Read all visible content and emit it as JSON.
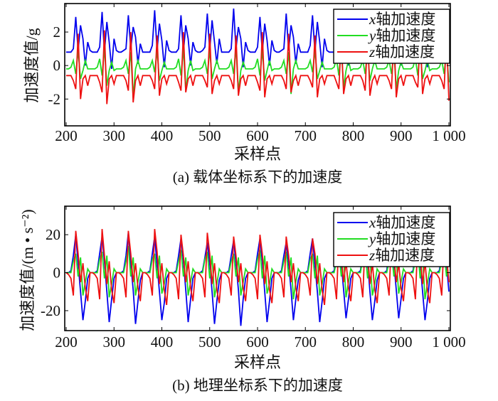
{
  "chart_data": [
    {
      "type": "line",
      "title": "",
      "caption": "(a) 载体坐标系下的加速度",
      "xlabel": "采样点",
      "ylabel": "加速度值/g",
      "xlim": [
        197,
        1003
      ],
      "ylim": [
        -3.6,
        3.7
      ],
      "xticks": [
        200,
        300,
        400,
        500,
        600,
        700,
        800,
        900,
        1000
      ],
      "xtick_labels": [
        "200",
        "300",
        "400",
        "500",
        "600",
        "700",
        "800",
        "900",
        "1 000"
      ],
      "yticks": [
        -2,
        0,
        2
      ],
      "ytick_labels": [
        "-2",
        "0",
        "2"
      ],
      "grid": false,
      "legend_position": "top-right",
      "x_start": 200,
      "x_step": 5,
      "series": [
        {
          "name": "x轴加速度",
          "var": "x",
          "color": "#0000ee",
          "values": [
            0.8,
            0.8,
            0.8,
            1.0,
            2.9,
            0.9,
            2.4,
            1.6,
            0.0,
            1.4,
            0.9,
            0.8,
            0.8,
            0.8,
            1.1,
            3.2,
            0.8,
            2.6,
            1.4,
            -0.2,
            1.6,
            0.9,
            0.8,
            0.8,
            0.9,
            1.0,
            3.0,
            1.0,
            2.3,
            1.7,
            0.1,
            1.3,
            0.8,
            0.8,
            0.8,
            0.8,
            1.2,
            3.3,
            0.9,
            2.5,
            1.5,
            -0.1,
            1.5,
            0.9,
            0.8,
            0.8,
            0.8,
            1.0,
            3.0,
            0.8,
            2.4,
            1.6,
            0.0,
            1.4,
            0.9,
            0.8,
            0.8,
            0.9,
            1.1,
            3.1,
            0.9,
            2.7,
            1.4,
            0.1,
            1.6,
            0.8,
            0.8,
            0.8,
            0.8,
            1.0,
            3.4,
            1.0,
            2.3,
            1.6,
            -0.1,
            1.4,
            0.9,
            0.8,
            0.8,
            0.8,
            1.1,
            2.9,
            0.8,
            2.5,
            1.5,
            0.0,
            1.5,
            0.9,
            0.8,
            0.8,
            0.9,
            1.0,
            3.1,
            0.9,
            2.4,
            1.7,
            0.1,
            1.3,
            0.8,
            0.8,
            0.8,
            0.8,
            1.2,
            3.0,
            0.8,
            2.6,
            1.4,
            -0.1,
            1.6,
            0.9,
            0.8,
            0.8,
            0.8,
            1.0,
            2.8,
            1.0,
            2.4,
            1.6,
            0.0,
            1.4,
            0.9,
            0.8,
            0.8,
            0.9,
            1.1,
            3.0,
            0.9,
            2.5,
            1.5,
            0.1,
            1.5,
            0.8,
            0.8,
            0.8,
            0.8,
            1.0,
            2.9,
            0.8,
            2.3,
            1.6,
            0.0,
            1.4,
            0.9,
            0.8,
            0.8,
            0.8,
            1.1,
            3.1,
            0.9,
            2.6,
            1.5,
            -0.1,
            1.5,
            0.9,
            0.8,
            0.8,
            0.8,
            1.0,
            2.8,
            0.9,
            2.2
          ]
        },
        {
          "name": "y轴加速度",
          "var": "y",
          "color": "#22dd22",
          "values": [
            -0.2,
            -0.2,
            -0.1,
            0.3,
            -0.5,
            0.9,
            -0.8,
            -0.3,
            0.3,
            -0.2,
            -0.2,
            -0.2,
            -0.2,
            -0.1,
            0.4,
            -0.6,
            1.0,
            -1.2,
            -0.3,
            0.2,
            -0.3,
            -0.2,
            -0.2,
            -0.2,
            -0.1,
            0.3,
            -0.5,
            0.8,
            -1.9,
            -0.2,
            0.3,
            -0.2,
            -0.2,
            -0.2,
            -0.2,
            -0.1,
            0.3,
            -0.4,
            0.9,
            -0.9,
            -0.3,
            0.2,
            -0.2,
            -0.2,
            -0.2,
            -0.2,
            -0.1,
            0.4,
            -0.6,
            1.0,
            -1.5,
            -0.3,
            0.3,
            -0.3,
            -0.2,
            -0.2,
            -0.2,
            -0.1,
            0.3,
            -0.5,
            0.9,
            -0.8,
            -0.2,
            0.3,
            -0.2,
            -0.2,
            -0.2,
            -0.2,
            -0.1,
            0.3,
            -0.5,
            1.1,
            -1.6,
            -0.3,
            0.2,
            -0.2,
            -0.2,
            -0.2,
            -0.2,
            -0.1,
            0.4,
            -0.6,
            0.9,
            -0.9,
            -0.3,
            0.3,
            -0.3,
            -0.2,
            -0.2,
            -0.2,
            -0.1,
            0.3,
            -0.5,
            0.8,
            -1.7,
            -0.2,
            0.3,
            -0.2,
            -0.2,
            -0.2,
            -0.2,
            -0.1,
            0.3,
            -0.4,
            0.9,
            -0.8,
            -0.3,
            0.2,
            -0.2,
            -0.2,
            -0.2,
            -0.2,
            -0.1,
            0.4,
            -0.6,
            1.0,
            -1.3,
            -0.3,
            0.3,
            -0.3,
            -0.2,
            -0.2,
            -0.2,
            -0.1,
            0.3,
            -0.5,
            0.9,
            -0.9,
            -0.2,
            0.3,
            -0.2,
            -0.2,
            -0.2,
            -0.2,
            -0.1,
            0.3,
            -0.5,
            0.8,
            -1.4,
            -0.3,
            0.2,
            -0.2,
            -0.2,
            -0.2,
            -0.2,
            -0.1,
            0.4,
            -0.6,
            0.9,
            -0.8,
            -0.3,
            0.3,
            -0.3,
            -0.2,
            -0.2,
            -0.2,
            -0.1,
            0.3,
            -0.5,
            0.9,
            -1.0
          ]
        },
        {
          "name": "z轴加速度",
          "var": "z",
          "color": "#ee1111",
          "values": [
            -0.6,
            -0.6,
            -0.6,
            -0.9,
            -1.4,
            1.9,
            -2.0,
            -0.8,
            -0.6,
            -1.2,
            -0.6,
            -0.6,
            -0.6,
            -0.6,
            -1.0,
            -1.6,
            2.1,
            -2.3,
            -0.8,
            -0.6,
            -1.1,
            -0.6,
            -0.6,
            -0.6,
            -0.6,
            -0.9,
            -1.5,
            2.0,
            -2.2,
            -0.9,
            -0.6,
            -1.2,
            -0.6,
            -0.6,
            -0.6,
            -0.6,
            -0.9,
            -1.4,
            1.8,
            -1.8,
            -0.8,
            -0.6,
            -1.1,
            -0.6,
            -0.6,
            -0.6,
            -0.6,
            -1.0,
            -1.5,
            2.0,
            -1.6,
            -0.8,
            -0.6,
            -1.2,
            -0.6,
            -0.6,
            -0.6,
            -0.6,
            -0.9,
            -1.3,
            1.9,
            -1.7,
            -0.9,
            -0.6,
            -1.1,
            -0.6,
            -0.6,
            -0.6,
            -0.6,
            -0.9,
            -1.4,
            1.8,
            -1.8,
            -0.8,
            -0.6,
            -1.2,
            -0.6,
            -0.6,
            -0.6,
            -0.6,
            -1.0,
            -1.5,
            2.0,
            -1.9,
            -0.8,
            -0.6,
            -1.1,
            -0.6,
            -0.6,
            -0.6,
            -0.6,
            -0.9,
            -1.4,
            1.9,
            -1.6,
            -0.9,
            -0.6,
            -1.2,
            -0.6,
            -0.6,
            -0.6,
            -0.6,
            -0.9,
            -1.3,
            1.8,
            -1.9,
            -0.8,
            -0.6,
            -1.1,
            -0.6,
            -0.6,
            -0.6,
            -0.6,
            -1.0,
            -1.4,
            1.7,
            -1.7,
            -0.8,
            -0.6,
            -1.2,
            -0.6,
            -0.6,
            -0.6,
            -0.6,
            -0.9,
            -1.5,
            1.9,
            -1.8,
            -0.9,
            -0.6,
            -1.1,
            -0.6,
            -0.6,
            -0.6,
            -0.6,
            -0.9,
            -1.4,
            1.8,
            -1.9,
            -0.8,
            -0.6,
            -1.2,
            -0.6,
            -0.6,
            -0.6,
            -0.6,
            -1.0,
            -1.3,
            1.9,
            -1.7,
            -0.8,
            -0.6,
            -1.1,
            -0.6,
            -0.6,
            -0.6,
            -0.6,
            -0.9,
            -1.4,
            1.8,
            -2.1
          ]
        }
      ]
    },
    {
      "type": "line",
      "title": "",
      "caption": "(b) 地理坐标系下的加速度",
      "xlabel": "采样点",
      "ylabel": "加速度值/(m • s⁻²)",
      "xlim": [
        197,
        1003
      ],
      "ylim": [
        -30.5,
        35
      ],
      "xticks": [
        200,
        300,
        400,
        500,
        600,
        700,
        800,
        900,
        1000
      ],
      "xtick_labels": [
        "200",
        "300",
        "400",
        "500",
        "600",
        "700",
        "800",
        "900",
        "1 000"
      ],
      "yticks": [
        -20,
        0,
        20
      ],
      "ytick_labels": [
        "-20",
        "0",
        "20"
      ],
      "grid": false,
      "legend_position": "top-right",
      "x_start": 200,
      "x_step": 5,
      "series": [
        {
          "name": "x轴加速度",
          "var": "x",
          "color": "#0000ee",
          "values": [
            0,
            0,
            1,
            9,
            20,
            5,
            -10,
            -25,
            -15,
            -3,
            0,
            0,
            0,
            1,
            10,
            19,
            6,
            -10,
            -26,
            -14,
            -3,
            0,
            0,
            0,
            1,
            9,
            21,
            5,
            -9,
            -27,
            -15,
            -4,
            0,
            0,
            0,
            1,
            10,
            19,
            4,
            -10,
            -25,
            -16,
            -3,
            0,
            0,
            0,
            1,
            9,
            18,
            6,
            -9,
            -26,
            -14,
            -3,
            0,
            0,
            0,
            1,
            8,
            16,
            5,
            -10,
            -27,
            -15,
            -4,
            0,
            0,
            0,
            1,
            9,
            17,
            5,
            -9,
            -28,
            -14,
            -3,
            0,
            0,
            0,
            1,
            10,
            18,
            6,
            -10,
            -26,
            -15,
            -3,
            0,
            0,
            0,
            1,
            9,
            16,
            5,
            -9,
            -25,
            -14,
            -4,
            0,
            0,
            0,
            1,
            10,
            18,
            4,
            -10,
            -26,
            -15,
            -3,
            0,
            0,
            0,
            1,
            9,
            17,
            5,
            -9,
            -24,
            -14,
            -3,
            0,
            0,
            0,
            1,
            9,
            16,
            6,
            -10,
            -25,
            -15,
            -4,
            0,
            0,
            0,
            1,
            10,
            18,
            5,
            -9,
            -24,
            -14,
            -3,
            0,
            0,
            0,
            1,
            9,
            17,
            5,
            -10,
            -25,
            -15,
            -3,
            0,
            0,
            0,
            1,
            9,
            18,
            5,
            -10
          ]
        },
        {
          "name": "y轴加速度",
          "var": "y",
          "color": "#22dd22",
          "values": [
            0,
            0,
            0,
            6,
            10,
            -2,
            8,
            -12,
            -5,
            2,
            0,
            0,
            0,
            0,
            7,
            11,
            -3,
            9,
            -13,
            -6,
            2,
            0,
            0,
            0,
            0,
            6,
            14,
            -2,
            8,
            -12,
            -5,
            2,
            0,
            0,
            0,
            0,
            7,
            10,
            -3,
            9,
            -11,
            -6,
            2,
            0,
            0,
            0,
            0,
            6,
            12,
            -2,
            8,
            -12,
            -5,
            2,
            0,
            0,
            0,
            0,
            7,
            11,
            -3,
            9,
            -13,
            -6,
            2,
            0,
            0,
            0,
            0,
            6,
            10,
            -2,
            8,
            -12,
            -5,
            2,
            0,
            0,
            0,
            0,
            7,
            12,
            -3,
            9,
            -11,
            -6,
            2,
            0,
            0,
            0,
            0,
            6,
            11,
            -2,
            8,
            -14,
            -5,
            2,
            0,
            0,
            0,
            0,
            7,
            10,
            -3,
            9,
            -12,
            -6,
            2,
            0,
            0,
            0,
            0,
            6,
            12,
            -2,
            8,
            -13,
            -5,
            2,
            0,
            0,
            0,
            0,
            7,
            11,
            -3,
            9,
            -12,
            -6,
            2,
            0,
            0,
            0,
            0,
            6,
            10,
            -2,
            8,
            -11,
            -5,
            2,
            0,
            0,
            0,
            0,
            7,
            12,
            -3,
            9,
            -14,
            -6,
            2,
            0,
            0,
            0,
            0,
            6,
            11,
            -2,
            8
          ]
        },
        {
          "name": "z轴加速度",
          "var": "z",
          "color": "#ee1111",
          "values": [
            0,
            -1,
            -3,
            -12,
            22,
            10,
            -5,
            5,
            -8,
            -15,
            0,
            0,
            -1,
            -3,
            -14,
            23,
            9,
            -6,
            6,
            -9,
            -16,
            0,
            0,
            -1,
            -3,
            -13,
            22,
            10,
            -5,
            5,
            -8,
            -15,
            0,
            0,
            -1,
            -3,
            -12,
            23,
            11,
            -6,
            5,
            -9,
            -17,
            0,
            0,
            -1,
            -3,
            -14,
            20,
            9,
            -5,
            6,
            -8,
            -15,
            0,
            0,
            -1,
            -3,
            -13,
            21,
            10,
            -6,
            5,
            -9,
            -16,
            0,
            0,
            -1,
            -3,
            -12,
            19,
            9,
            -5,
            5,
            -8,
            -15,
            0,
            0,
            -1,
            -3,
            -14,
            20,
            10,
            -6,
            6,
            -9,
            -16,
            0,
            0,
            -1,
            -3,
            -13,
            19,
            9,
            -5,
            5,
            -8,
            -15,
            0,
            0,
            -1,
            -3,
            -12,
            18,
            10,
            -6,
            5,
            -9,
            -17,
            0,
            0,
            -1,
            -3,
            -14,
            19,
            9,
            -5,
            6,
            -8,
            -15,
            0,
            0,
            -1,
            -3,
            -13,
            18,
            10,
            -6,
            5,
            -9,
            -16,
            0,
            0,
            -1,
            -3,
            -12,
            19,
            9,
            -5,
            5,
            -8,
            -15,
            0,
            0,
            -1,
            -3,
            -14,
            18,
            10,
            -6,
            6,
            -9,
            -16,
            0,
            0,
            -1,
            -3,
            -12,
            19,
            9,
            -5
          ]
        }
      ]
    }
  ]
}
